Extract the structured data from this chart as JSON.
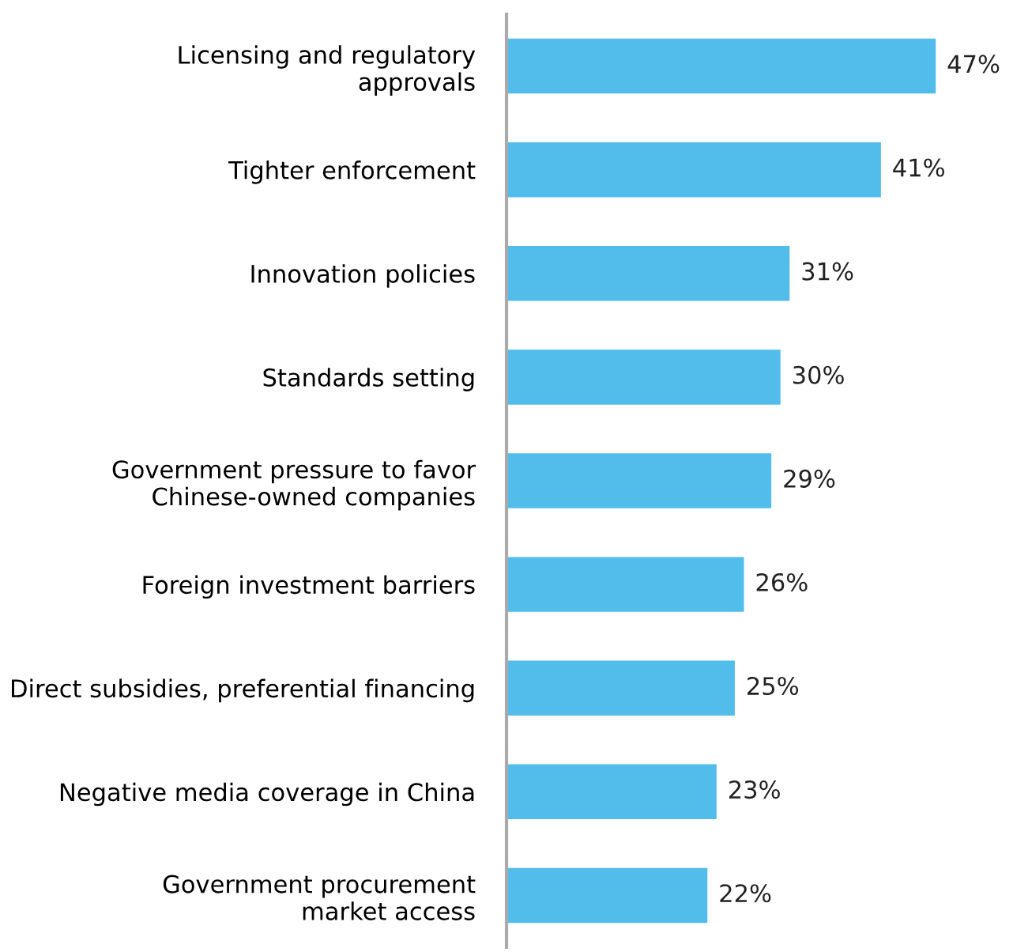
{
  "chart_data": {
    "type": "bar",
    "orientation": "horizontal",
    "categories": [
      "Licensing and regulatory\napprovals",
      "Tighter enforcement",
      "Innovation policies",
      "Standards setting",
      "Government pressure to favor\nChinese-owned companies",
      "Foreign investment barriers",
      "Direct subsidies, preferential financing",
      "Negative media coverage in China",
      "Government procurement\nmarket access"
    ],
    "values": [
      47,
      41,
      31,
      30,
      29,
      26,
      25,
      23,
      22
    ],
    "value_labels": [
      "47%",
      "41%",
      "31%",
      "30%",
      "29%",
      "26%",
      "25%",
      "23%",
      "22%"
    ],
    "color": "#52bceb",
    "tick_labels": "y",
    "grid": false,
    "legend": false
  }
}
